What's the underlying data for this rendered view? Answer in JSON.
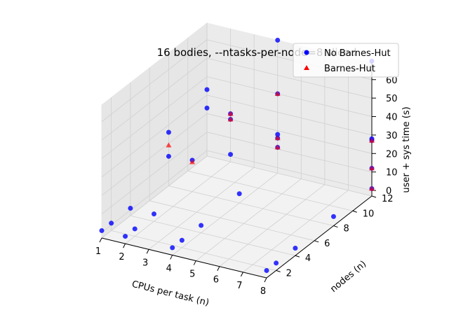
{
  "chart_data": {
    "type": "scatter",
    "projection": "3d",
    "title": "16 bodies, --ntasks-per-node=8 sliced",
    "xlabel": "CPUs per task (n)",
    "ylabel": "nodes (n)",
    "zlabel": "user + sys time (s)",
    "xlim": [
      1,
      8
    ],
    "ylim": [
      1,
      12
    ],
    "zlim": [
      -3,
      69
    ],
    "xticks": [
      1,
      2,
      3,
      4,
      5,
      6,
      7,
      8
    ],
    "yticks": [
      2,
      4,
      6,
      8,
      10,
      12
    ],
    "zticks": [
      0,
      10,
      20,
      30,
      40,
      50,
      60
    ],
    "grid": true,
    "legend_position": "top-right",
    "legend": [
      "No Barnes-Hut",
      "Barnes-Hut"
    ],
    "series": [
      {
        "name": "No Barnes-Hut",
        "color": "#0000ff",
        "marker": "circle",
        "points": [
          [
            1,
            1,
            1
          ],
          [
            1,
            2,
            1
          ],
          [
            1,
            4,
            1
          ],
          [
            1,
            8,
            13
          ],
          [
            1,
            8,
            26
          ],
          [
            1,
            12,
            33
          ],
          [
            2,
            1,
            1
          ],
          [
            2,
            2,
            1
          ],
          [
            2,
            4,
            1
          ],
          [
            2,
            8,
            14
          ],
          [
            2,
            12,
            20
          ],
          [
            2,
            12,
            1
          ],
          [
            4,
            1,
            1
          ],
          [
            4,
            2,
            1
          ],
          [
            4,
            4,
            1
          ],
          [
            4,
            8,
            2
          ],
          [
            4,
            12,
            69
          ],
          [
            4,
            12,
            18
          ],
          [
            8,
            1,
            1
          ],
          [
            8,
            2,
            1
          ],
          [
            8,
            4,
            1
          ],
          [
            8,
            8,
            2
          ],
          [
            8,
            12,
            1
          ],
          [
            8,
            12,
            28
          ],
          [
            1,
            12,
            23
          ],
          [
            2,
            12,
            23
          ],
          [
            4,
            12,
            40
          ],
          [
            4,
            12,
            16
          ],
          [
            4,
            12,
            11
          ],
          [
            8,
            12,
            70
          ],
          [
            8,
            12,
            27
          ],
          [
            8,
            12,
            12
          ]
        ]
      },
      {
        "name": "Barnes-Hut",
        "color": "#ff0000",
        "marker": "triangle",
        "points": [
          [
            1,
            8,
            19
          ],
          [
            2,
            8,
            13
          ],
          [
            2,
            12,
            23
          ],
          [
            2,
            12,
            20
          ],
          [
            4,
            12,
            40
          ],
          [
            4,
            12,
            16
          ],
          [
            4,
            12,
            11
          ],
          [
            8,
            12,
            27
          ],
          [
            8,
            12,
            12
          ],
          [
            8,
            12,
            1
          ]
        ]
      }
    ]
  }
}
